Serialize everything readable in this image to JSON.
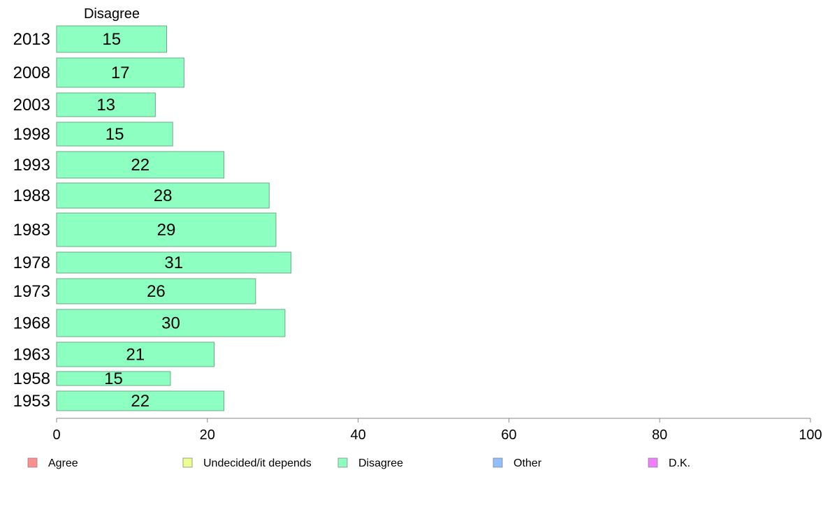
{
  "chart_data": {
    "type": "bar",
    "orientation": "horizontal",
    "title": "Disagree",
    "categories": [
      "2013",
      "2008",
      "2003",
      "1998",
      "1993",
      "1988",
      "1983",
      "1978",
      "1973",
      "1968",
      "1963",
      "1958",
      "1953"
    ],
    "values": [
      15,
      17,
      13,
      15,
      22,
      28,
      29,
      31,
      26,
      30,
      21,
      15,
      22
    ],
    "bar_lengths": [
      14.6,
      16.9,
      13.1,
      15.4,
      22.2,
      28.2,
      29.1,
      31.1,
      26.4,
      30.3,
      20.9,
      15.1,
      22.2
    ],
    "xlim": [
      0,
      100
    ],
    "xticks": [
      "0",
      "20",
      "40",
      "60",
      "80",
      "100"
    ],
    "xlabel": "",
    "ylabel": "",
    "grid": false,
    "bar_color": "#8dffc1",
    "legend_position": "bottom",
    "legend": [
      {
        "label": "Agree",
        "color": "#ff8f8f"
      },
      {
        "label": "Undecided/it depends",
        "color": "#eeff8f"
      },
      {
        "label": "Disagree",
        "color": "#8dffc1"
      },
      {
        "label": "Other",
        "color": "#8fbfff"
      },
      {
        "label": "D.K.",
        "color": "#ef7fff"
      }
    ]
  }
}
